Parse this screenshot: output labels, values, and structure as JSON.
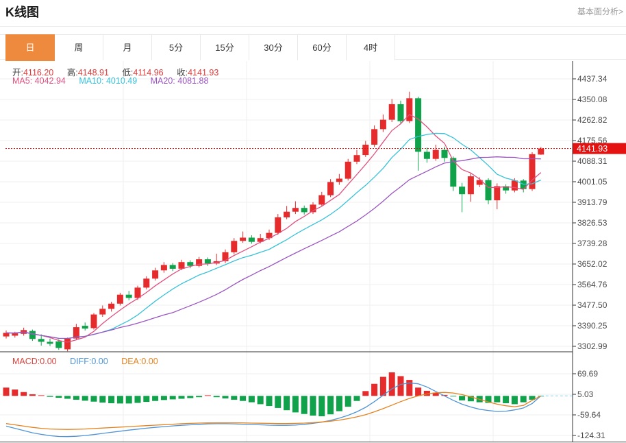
{
  "header": {
    "title": "K线图",
    "link_label": "基本面分析>"
  },
  "tabs": {
    "active_index": 0,
    "items": [
      {
        "label": "日"
      },
      {
        "label": "周"
      },
      {
        "label": "月"
      },
      {
        "label": "5分"
      },
      {
        "label": "15分"
      },
      {
        "label": "30分"
      },
      {
        "label": "60分"
      },
      {
        "label": "4时"
      }
    ]
  },
  "main_legend": {
    "ohlc": [
      {
        "label": "开:",
        "value": "4116.20"
      },
      {
        "label": "高:",
        "value": "4148.91"
      },
      {
        "label": "低:",
        "value": "4114.96"
      },
      {
        "label": "收:",
        "value": "4141.93"
      }
    ],
    "ma": [
      {
        "label": "MA5:",
        "value": "4042.94"
      },
      {
        "label": "MA10:",
        "value": "4010.49"
      },
      {
        "label": "MA20:",
        "value": "4081.88"
      }
    ]
  },
  "macd_legend": [
    {
      "label": "MACD:",
      "value": "0.00"
    },
    {
      "label": "DIFF:",
      "value": "0.00"
    },
    {
      "label": "DEA:",
      "value": "0.00"
    }
  ],
  "price_axis": {
    "labels": [
      "4437.34",
      "4350.08",
      "4262.82",
      "4175.56",
      "4088.31",
      "4001.05",
      "3913.79",
      "3826.53",
      "3739.28",
      "3652.02",
      "3564.76",
      "3477.50",
      "3390.25",
      "3302.99"
    ],
    "badge": "4141.93"
  },
  "macd_axis": {
    "labels": [
      "69.69",
      "5.03",
      "-59.64",
      "-124.31"
    ]
  },
  "colors": {
    "up": "#e52b2b",
    "down": "#0fa24b",
    "ma5": "#e0517e",
    "ma10": "#38c2d8",
    "ma20": "#9a55c0",
    "diff": "#4f94d5",
    "dea": "#e5821e",
    "tab_active": "#ee8a3e",
    "badge": "#e51212",
    "grid": "#efefef",
    "axis": "#333333"
  },
  "chart_data": [
    {
      "type": "candlestick",
      "title": "K线图 (日)",
      "ohlc_display": {
        "open": 4116.2,
        "high": 4148.91,
        "low": 4114.96,
        "close": 4141.93
      },
      "ma_display": {
        "MA5": 4042.94,
        "MA10": 4010.49,
        "MA20": 4081.88
      },
      "ma_periods": [
        5,
        10,
        20
      ],
      "y_ticks": [
        4437.34,
        4350.08,
        4262.82,
        4175.56,
        4088.31,
        4001.05,
        3913.79,
        3826.53,
        3739.28,
        3652.02,
        3564.76,
        3477.5,
        3390.25,
        3302.99
      ],
      "last_price": 4141.93,
      "candles": [
        [
          3345,
          3370,
          3336,
          3360
        ],
        [
          3348,
          3365,
          3340,
          3358
        ],
        [
          3356,
          3382,
          3348,
          3372
        ],
        [
          3368,
          3374,
          3326,
          3334
        ],
        [
          3334,
          3354,
          3306,
          3322
        ],
        [
          3322,
          3336,
          3304,
          3314
        ],
        [
          3324,
          3332,
          3288,
          3296
        ],
        [
          3290,
          3340,
          3282,
          3336
        ],
        [
          3336,
          3398,
          3330,
          3384
        ],
        [
          3390,
          3404,
          3370,
          3378
        ],
        [
          3380,
          3444,
          3374,
          3438
        ],
        [
          3438,
          3476,
          3428,
          3462
        ],
        [
          3462,
          3492,
          3450,
          3484
        ],
        [
          3484,
          3530,
          3476,
          3522
        ],
        [
          3522,
          3538,
          3498,
          3508
        ],
        [
          3508,
          3560,
          3500,
          3552
        ],
        [
          3552,
          3600,
          3544,
          3590
        ],
        [
          3590,
          3636,
          3582,
          3625
        ],
        [
          3625,
          3660,
          3615,
          3648
        ],
        [
          3648,
          3656,
          3622,
          3632
        ],
        [
          3632,
          3670,
          3626,
          3660
        ],
        [
          3660,
          3668,
          3634,
          3644
        ],
        [
          3644,
          3682,
          3638,
          3672
        ],
        [
          3672,
          3680,
          3644,
          3654
        ],
        [
          3654,
          3696,
          3648,
          3664
        ],
        [
          3664,
          3714,
          3656,
          3702
        ],
        [
          3702,
          3762,
          3694,
          3750
        ],
        [
          3750,
          3790,
          3742,
          3764
        ],
        [
          3764,
          3774,
          3738,
          3746
        ],
        [
          3746,
          3780,
          3740,
          3762
        ],
        [
          3762,
          3798,
          3754,
          3784
        ],
        [
          3784,
          3864,
          3776,
          3850
        ],
        [
          3850,
          3898,
          3842,
          3874
        ],
        [
          3874,
          3918,
          3864,
          3890
        ],
        [
          3890,
          3900,
          3862,
          3872
        ],
        [
          3872,
          3914,
          3864,
          3904
        ],
        [
          3904,
          3958,
          3896,
          3944
        ],
        [
          3944,
          4012,
          3936,
          4000
        ],
        [
          4000,
          4034,
          3988,
          4014
        ],
        [
          4014,
          4098,
          4006,
          4086
        ],
        [
          4086,
          4136,
          4076,
          4114
        ],
        [
          4114,
          4174,
          4106,
          4158
        ],
        [
          4158,
          4240,
          4148,
          4224
        ],
        [
          4224,
          4286,
          4212,
          4264
        ],
        [
          4264,
          4352,
          4254,
          4330
        ],
        [
          4330,
          4345,
          4245,
          4258
        ],
        [
          4258,
          4383,
          4250,
          4355
        ],
        [
          4355,
          4362,
          4048,
          4128
        ],
        [
          4128,
          4146,
          4082,
          4098
        ],
        [
          4098,
          4158,
          4090,
          4136
        ],
        [
          4136,
          4150,
          4086,
          4102
        ],
        [
          4102,
          4108,
          3962,
          3980
        ],
        [
          3980,
          3996,
          3872,
          3948
        ],
        [
          3948,
          4038,
          3916,
          4024
        ],
        [
          3988,
          4020,
          3978,
          4008
        ],
        [
          4008,
          4016,
          3906,
          3922
        ],
        [
          3922,
          3994,
          3884,
          3982
        ],
        [
          3982,
          3990,
          3950,
          3964
        ],
        [
          3964,
          4016,
          3956,
          4006
        ],
        [
          4006,
          4012,
          3956,
          3970
        ],
        [
          3970,
          4126,
          3962,
          4118
        ],
        [
          4116.2,
          4148.91,
          4114.96,
          4141.93
        ]
      ]
    },
    {
      "type": "bar",
      "title": "MACD",
      "latest": {
        "macd": 0.0,
        "diff": 0.0,
        "dea": 0.0
      },
      "y_ticks": [
        69.69,
        5.03,
        -59.64,
        -124.31
      ],
      "macd": [
        26,
        20,
        12,
        5,
        2,
        -3,
        -6,
        -9,
        -12,
        -15,
        -18,
        -21,
        -23,
        -24,
        -24,
        -22,
        -19,
        -16,
        -13,
        -11,
        -9,
        -7,
        -4,
        2,
        -4,
        -8,
        -12,
        -16,
        -20,
        -26,
        -32,
        -38,
        -45,
        -52,
        -57,
        -62,
        -64,
        -58,
        -48,
        -34,
        -16,
        15,
        38,
        60,
        74,
        62,
        50,
        26,
        16,
        10,
        3,
        -2,
        -14,
        -17,
        -20,
        -22,
        -20,
        -23,
        -26,
        -20,
        -12,
        -1
      ],
      "diff": [
        -95,
        -102,
        -109,
        -116,
        -121,
        -125,
        -127.5,
        -128,
        -127,
        -124.5,
        -121.5,
        -118,
        -114.5,
        -111,
        -107.5,
        -104.5,
        -101.5,
        -99,
        -96.5,
        -94.5,
        -92.5,
        -91,
        -89.5,
        -88,
        -87.5,
        -87.5,
        -88,
        -89,
        -90,
        -91,
        -92,
        -92.5,
        -92.5,
        -91.5,
        -89.5,
        -86.5,
        -82.5,
        -77,
        -70,
        -61,
        -50,
        -36,
        -18,
        2,
        22,
        36,
        41,
        38,
        28,
        14,
        0,
        -14,
        -26,
        -35,
        -42,
        -46,
        -49,
        -48,
        -44,
        -38,
        -24,
        0
      ],
      "dea": [
        -87,
        -91,
        -95,
        -99,
        -102,
        -104,
        -105,
        -105.5,
        -105,
        -104,
        -102.5,
        -101,
        -99.5,
        -98,
        -96.5,
        -95,
        -93.5,
        -92,
        -90.5,
        -89,
        -87.5,
        -86.5,
        -85.5,
        -85,
        -84.5,
        -84.5,
        -84.5,
        -85,
        -85.5,
        -86,
        -86.5,
        -87,
        -87,
        -86.5,
        -85.5,
        -84,
        -82,
        -79.5,
        -76,
        -71.5,
        -66,
        -59,
        -50,
        -40,
        -29,
        -18,
        -8,
        0,
        6,
        10,
        11,
        9,
        4,
        -3,
        -11,
        -19,
        -26,
        -31,
        -34,
        -30,
        -14,
        0
      ]
    }
  ]
}
